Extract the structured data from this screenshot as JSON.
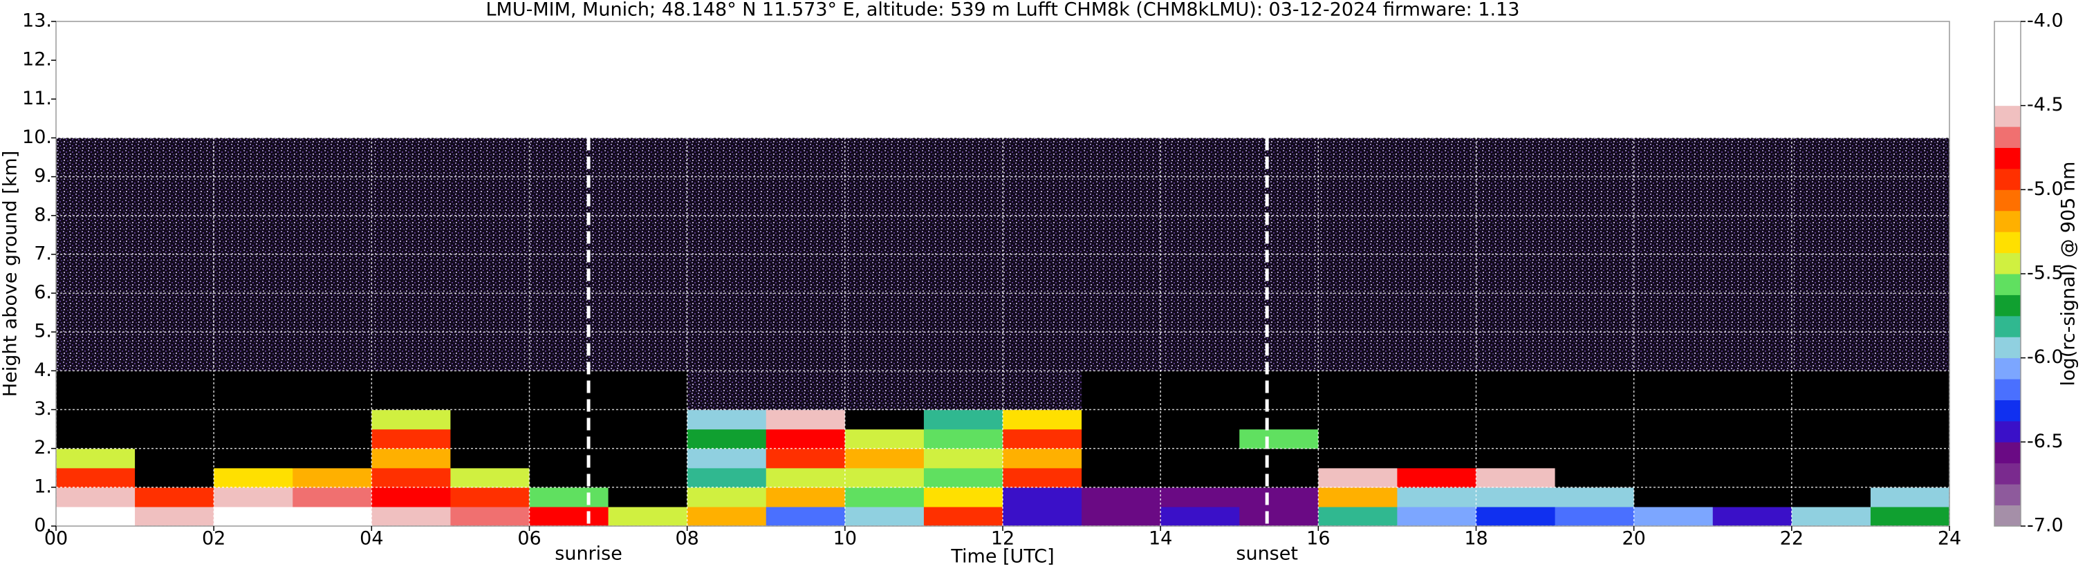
{
  "chart_data": {
    "type": "heatmap",
    "title": "LMU-MIM, Munich; 48.148° N 11.573° E, altitude: 539 m    Lufft CHM8k (CHM8kLMU): 03-12-2024    firmware: 1.13",
    "x_label": "Time [UTC]",
    "y_label": "Height above ground [km]",
    "colorbar_label": "log(rc-signal) @ 905 nm",
    "x": [
      0,
      1,
      2,
      3,
      4,
      5,
      6,
      7,
      8,
      9,
      10,
      11,
      12,
      13,
      14,
      15,
      16,
      17,
      18,
      19,
      20,
      21,
      22,
      23,
      24
    ],
    "y": [
      0,
      0.5,
      1,
      1.5,
      2,
      2.5,
      3,
      4,
      6,
      8,
      10
    ],
    "z": [
      [
        -4.4,
        -4.6,
        -4.4,
        -4.5,
        -4.6,
        -4.7,
        -4.8,
        -5.4,
        -5.2,
        -6.2,
        -6.0,
        -5.0,
        -6.4,
        -6.6,
        -6.5,
        -6.6,
        -5.8,
        -6.1,
        -6.3,
        -6.2,
        -6.1,
        -6.4,
        -5.9,
        -5.7
      ],
      [
        -4.6,
        -4.9,
        -4.6,
        -4.7,
        -4.8,
        -4.9,
        -5.6,
        -7.2,
        -5.5,
        -5.2,
        -5.6,
        -5.3,
        -6.5,
        -6.6,
        -6.6,
        -6.6,
        -5.2,
        -5.9,
        -6.0,
        -5.9,
        -7.2,
        -7.2,
        -7.2,
        -6.0
      ],
      [
        -5.0,
        -7.1,
        -5.3,
        -5.2,
        -5.0,
        -5.4,
        -7.2,
        -7.2,
        -5.8,
        -5.4,
        -5.5,
        -5.6,
        -5.0,
        -7.2,
        -7.2,
        -7.2,
        -4.6,
        -4.8,
        -4.6,
        -7.2,
        -7.2,
        -7.2,
        -7.2,
        -7.2
      ],
      [
        -5.5,
        -7.2,
        -7.2,
        -7.2,
        -5.2,
        -7.2,
        -7.2,
        -7.2,
        -5.9,
        -5.0,
        -5.2,
        -5.5,
        -5.2,
        -7.2,
        -7.2,
        -7.2,
        -7.2,
        -7.2,
        -7.2,
        -7.2,
        -7.2,
        -7.2,
        -7.2,
        -7.2
      ],
      [
        -7.2,
        -7.2,
        -7.2,
        -7.2,
        -5.0,
        -7.2,
        -7.2,
        -7.2,
        -5.7,
        -4.8,
        -5.4,
        -5.6,
        -4.9,
        -7.2,
        -7.2,
        -5.6,
        -7.2,
        -7.2,
        -7.2,
        -7.2,
        -7.2,
        -7.2,
        -7.2,
        -7.2
      ],
      [
        -7.2,
        -7.2,
        -7.2,
        -7.2,
        -5.4,
        -7.2,
        -7.2,
        -7.2,
        -6.0,
        -4.6,
        -7.2,
        -5.8,
        -5.3,
        -7.2,
        -7.2,
        -7.2,
        -7.2,
        -7.2,
        -7.2,
        -7.2,
        -7.2,
        -7.2,
        -7.2,
        -7.2
      ],
      [
        -7.2,
        -7.2,
        -7.2,
        -7.2,
        -7.2,
        -7.2,
        -7.2,
        -7.2,
        -6.95,
        -6.95,
        -6.95,
        -6.95,
        -6.95,
        -7.2,
        -7.2,
        -7.2,
        -7.2,
        -7.2,
        -7.2,
        -7.2,
        -7.2,
        -7.2,
        -7.2,
        -7.2
      ],
      [
        -6.95,
        -6.95,
        -6.95,
        -6.95,
        -6.95,
        -6.95,
        -6.95,
        -6.95,
        -6.95,
        -6.9,
        -6.95,
        -6.95,
        -6.95,
        -6.95,
        -6.95,
        -6.95,
        -6.95,
        -6.95,
        -6.95,
        -6.95,
        -6.95,
        -6.95,
        -6.95,
        -6.95
      ],
      [
        -6.95,
        -6.95,
        -6.95,
        -6.95,
        -6.95,
        -6.95,
        -6.95,
        -6.95,
        -6.9,
        -6.9,
        -6.9,
        -6.9,
        -6.9,
        -6.95,
        -6.95,
        -6.95,
        -6.95,
        -6.95,
        -6.95,
        -6.95,
        -6.95,
        -6.95,
        -6.95,
        -6.95
      ],
      [
        -6.95,
        -6.95,
        -6.95,
        -6.95,
        -6.95,
        -6.95,
        -6.95,
        -6.95,
        -6.95,
        -6.9,
        -6.9,
        -6.9,
        -6.95,
        -6.95,
        -6.95,
        -6.95,
        -6.95,
        -6.95,
        -6.95,
        -6.95,
        -6.95,
        -6.95,
        -6.95,
        -6.95
      ]
    ],
    "clim": [
      -7,
      -4
    ],
    "colormap": [
      "#a58fa8",
      "#8e5a9c",
      "#7a2a8e",
      "#6a0a84",
      "#3a10c8",
      "#1030f0",
      "#4a70ff",
      "#7ca6ff",
      "#90d0e0",
      "#30b890",
      "#10a030",
      "#60e060",
      "#d0f040",
      "#ffe000",
      "#ffb000",
      "#ff7000",
      "#ff3000",
      "#ff0000",
      "#f07070",
      "#f0c0c0",
      "#ffffff",
      "#ffffff",
      "#ffffff",
      "#ffffff"
    ],
    "under_color": "#000000",
    "xlim": [
      0,
      24
    ],
    "ylim": [
      0,
      13
    ],
    "xticks": [
      {
        "value": 0,
        "label": "00"
      },
      {
        "value": 2,
        "label": "02"
      },
      {
        "value": 4,
        "label": "04"
      },
      {
        "value": 6,
        "label": "06"
      },
      {
        "value": 8,
        "label": "08"
      },
      10,
      12,
      14,
      16,
      18,
      20,
      22,
      24
    ],
    "yticks": [
      {
        "value": 0,
        "label": "0."
      },
      {
        "value": 1,
        "label": "1."
      },
      {
        "value": 2,
        "label": "2."
      },
      {
        "value": 3,
        "label": "3."
      },
      {
        "value": 4,
        "label": "4."
      },
      {
        "value": 5,
        "label": "5."
      },
      {
        "value": 6,
        "label": "6."
      },
      {
        "value": 7,
        "label": "7."
      },
      {
        "value": 8,
        "label": "8."
      },
      {
        "value": 9,
        "label": "9."
      },
      {
        "value": 10,
        "label": "10."
      },
      {
        "value": 11,
        "label": "11."
      },
      {
        "value": 12,
        "label": "12."
      },
      {
        "value": 13,
        "label": "13."
      }
    ],
    "cticks": [
      {
        "value": -4,
        "label": "-4.0"
      },
      {
        "value": -4.5,
        "label": "-4.5"
      },
      {
        "value": -5,
        "label": "-5.0"
      },
      {
        "value": -5.5,
        "label": "-5.5"
      },
      {
        "value": -6,
        "label": "-6.0"
      },
      {
        "value": -6.5,
        "label": "-6.5"
      },
      {
        "value": -7,
        "label": "-7.0"
      }
    ],
    "grid": true,
    "annotations": [
      {
        "x": 6.75,
        "text": "sunrise"
      },
      {
        "x": 15.35,
        "text": "sunset"
      }
    ]
  }
}
